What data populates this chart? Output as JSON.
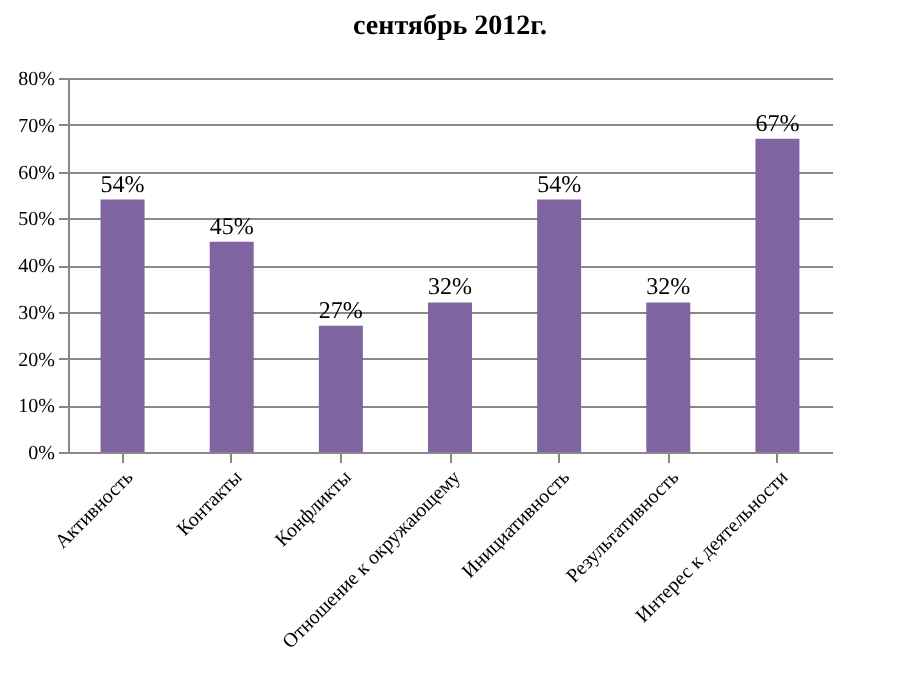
{
  "chart_data": {
    "type": "bar",
    "title": "сентябрь 2012г.",
    "categories": [
      "Активность",
      "Контакты",
      "Конфликты",
      "Отношение к окружающему",
      "Инициативность",
      "Результативность",
      "Интерес к деятельности"
    ],
    "values": [
      54,
      45,
      27,
      32,
      54,
      32,
      67
    ],
    "value_labels": [
      "54%",
      "45%",
      "27%",
      "32%",
      "54%",
      "32%",
      "67%"
    ],
    "color": "#8064a2",
    "ylim": [
      0,
      80
    ],
    "yticks": [
      {
        "value": 0,
        "label": "0%"
      },
      {
        "value": 10,
        "label": "10%"
      },
      {
        "value": 20,
        "label": "20%"
      },
      {
        "value": 30,
        "label": "30%"
      },
      {
        "value": 40,
        "label": "40%"
      },
      {
        "value": 50,
        "label": "50%"
      },
      {
        "value": 60,
        "label": "60%"
      },
      {
        "value": 70,
        "label": "70%"
      },
      {
        "value": 80,
        "label": "80%"
      }
    ],
    "grid": "y"
  }
}
